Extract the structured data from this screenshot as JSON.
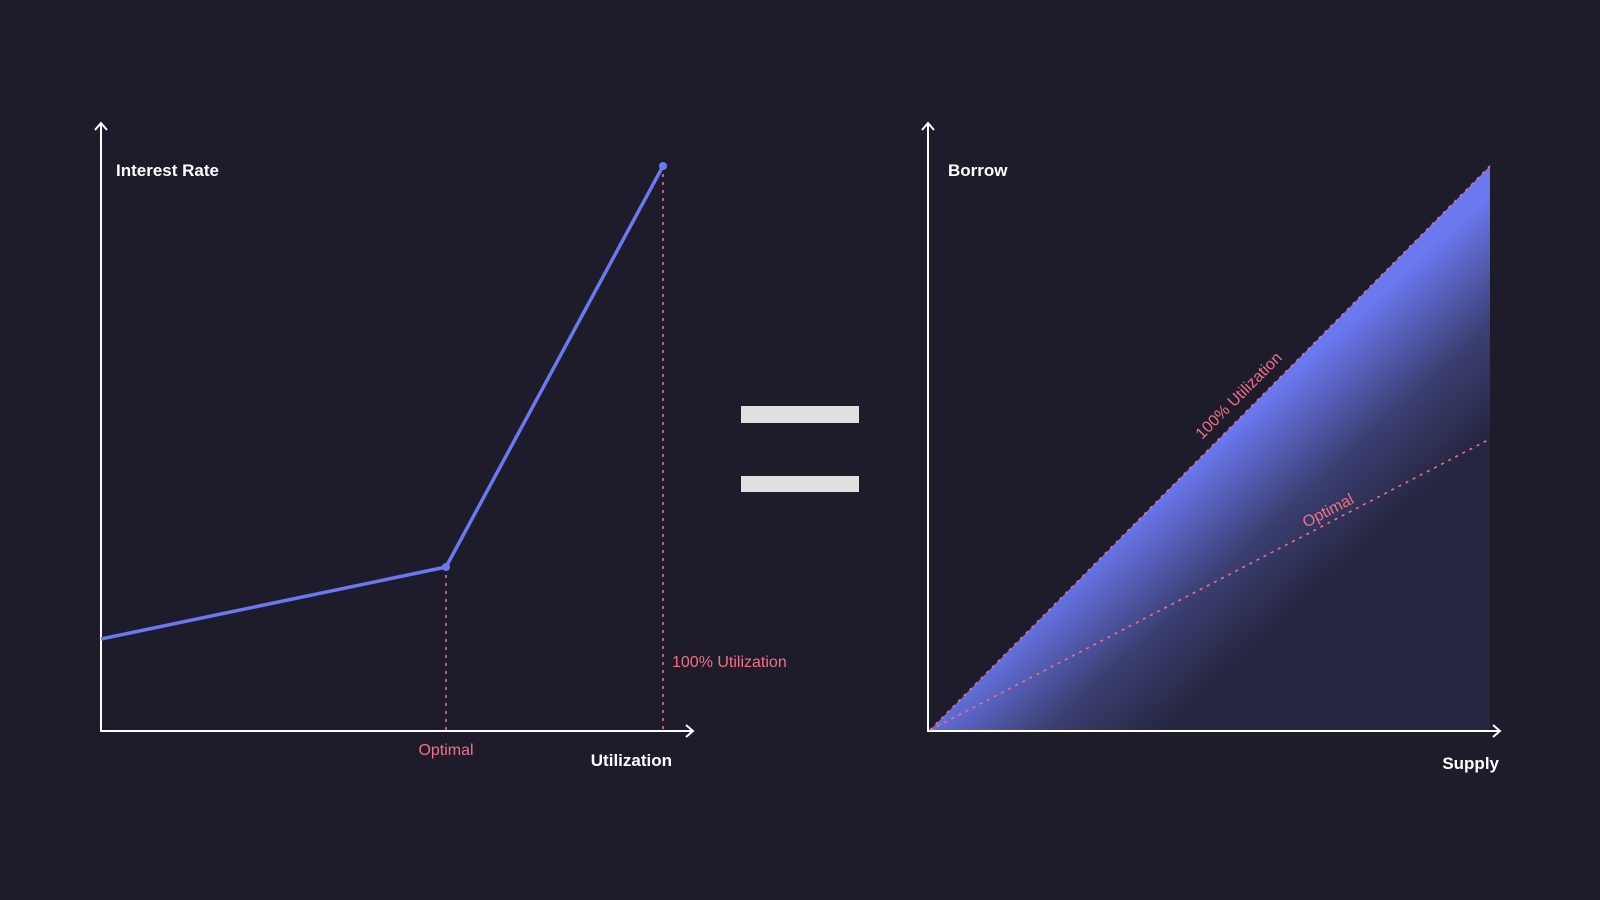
{
  "colors": {
    "background": "#1e1c2b",
    "curve": "#6b78f0",
    "marker": "#f0708a",
    "axis": "#ffffff",
    "equals": "#e0e0e0"
  },
  "left_diagram": {
    "y_axis_label": "Interest Rate",
    "x_axis_label": "Utilization",
    "optimal_label": "Optimal",
    "full_label": "100% Utilization"
  },
  "equals_sign": "=",
  "right_diagram": {
    "y_axis_label": "Borrow",
    "x_axis_label": "Supply",
    "full_label": "100% Utilization",
    "optimal_label": "Optimal"
  }
}
